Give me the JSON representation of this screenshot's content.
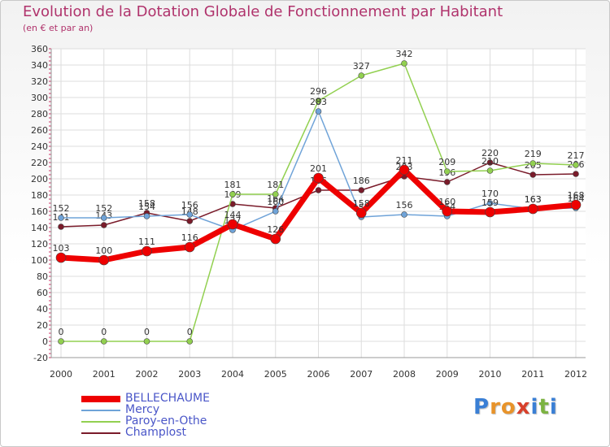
{
  "header": {
    "title": "Evolution de la Dotation Globale de Fonctionnement par Habitant",
    "subtitle": "(en € et par an)"
  },
  "logo": {
    "text": "Proxiti",
    "letters": [
      "P",
      "r",
      "o",
      "x",
      "i",
      "t",
      "i"
    ],
    "colors": [
      "#3a7fd5",
      "#e8932a",
      "#e8932a",
      "#d8402b",
      "#3a7fd5",
      "#7cb342",
      "#3a7fd5"
    ]
  },
  "chart_data": {
    "type": "line",
    "title": "Evolution de la Dotation Globale de Fonctionnement par Habitant",
    "subtitle": "(en € et par an)",
    "xlabel": "",
    "ylabel": "",
    "ylim": [
      -20,
      360
    ],
    "yticks": [
      -20,
      0,
      20,
      40,
      60,
      80,
      100,
      120,
      140,
      160,
      180,
      200,
      220,
      240,
      260,
      280,
      300,
      320,
      340,
      360
    ],
    "grid": true,
    "legend_position": "bottom-left",
    "categories": [
      "2000",
      "2001",
      "2002",
      "2003",
      "2004",
      "2005",
      "2006",
      "2007",
      "2008",
      "2009",
      "2010",
      "2011",
      "2012"
    ],
    "series": [
      {
        "name": "Champlost",
        "color": "#7a1b2a",
        "values": [
          141,
          143,
          158,
          148,
          169,
          164,
          186,
          186,
          203,
          196,
          220,
          205,
          206
        ]
      },
      {
        "name": "Paroy-en-Othe",
        "color": "#92d050",
        "values": [
          0,
          0,
          0,
          0,
          181,
          181,
          296,
          327,
          342,
          209,
          210,
          219,
          217
        ]
      },
      {
        "name": "Mercy",
        "color": "#6fa3d8",
        "values": [
          152,
          152,
          154,
          156,
          137,
          160,
          283,
          153,
          156,
          154,
          170,
          163,
          164
        ]
      },
      {
        "name": "BELLECHAUME",
        "color": "#ee0000",
        "values": [
          103,
          100,
          111,
          116,
          144,
          126,
          201,
          158,
          211,
          160,
          159,
          163,
          168
        ]
      }
    ],
    "legend_order": [
      "BELLECHAUME",
      "Mercy",
      "Paroy-en-Othe",
      "Champlost"
    ]
  }
}
